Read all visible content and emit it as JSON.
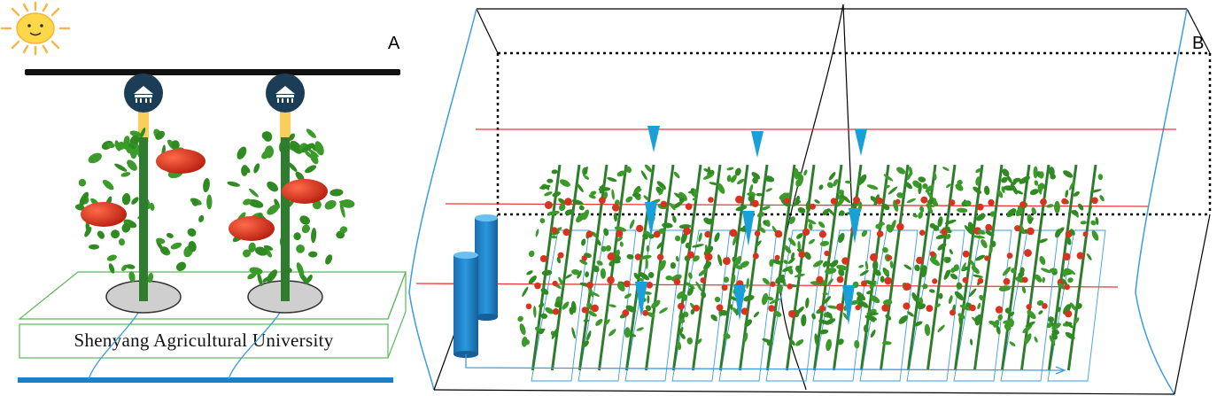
{
  "panels": {
    "a": {
      "label": "A"
    },
    "b": {
      "label": "B"
    }
  },
  "university_label": "Shenyang Agricultural University",
  "icons": [
    "sun-icon",
    "lamp-icon",
    "tomato-plant-icon",
    "water-tank-icon",
    "dripper-icon"
  ],
  "colors": {
    "sky_bar": "#111111",
    "lamp_badge": "#1b3d55",
    "lamp_light": "#f7cf5a",
    "stem": "#2e7d2e",
    "leaf": "#3b9a2a",
    "tomato": "#d8331f",
    "pipe": "#1f7fc4",
    "grow_light": "#e8383a",
    "dripper": "#1aa0d8",
    "bed_outline": "#5cb85c",
    "greenhouse_outline": "#3d9be0"
  }
}
